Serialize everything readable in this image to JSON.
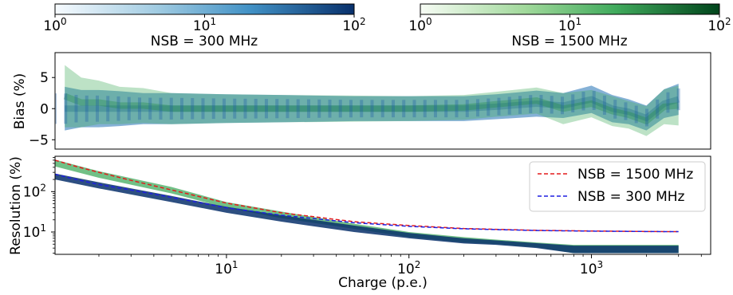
{
  "colorbars": [
    {
      "title": "NSB = 300 MHz",
      "colormap": "Blues",
      "color_low": "#f7fbff",
      "color_high": "#08306b",
      "ticks": [
        {
          "base": "10",
          "exp": "0"
        },
        {
          "base": "10",
          "exp": "1"
        },
        {
          "base": "10",
          "exp": "2"
        }
      ]
    },
    {
      "title": "NSB = 1500 MHz",
      "colormap": "Greens",
      "color_low": "#f7fcf5",
      "color_high": "#00441b",
      "ticks": [
        {
          "base": "10",
          "exp": "0"
        },
        {
          "base": "10",
          "exp": "1"
        },
        {
          "base": "10",
          "exp": "2"
        }
      ]
    }
  ],
  "chart_data": [
    {
      "type": "heatmap",
      "panel": "bias",
      "ylabel": "Bias (%)",
      "ylim": [
        -6.5,
        9
      ],
      "xscale": "log",
      "xlim": [
        1.15,
        4500
      ],
      "yticks": [
        "5",
        "0",
        "−5"
      ],
      "ytick_values": [
        5,
        0,
        -5
      ],
      "grid": false,
      "series": [
        {
          "name": "NSB = 300 MHz",
          "color": "#2171b5",
          "charge": [
            1.3,
            1.6,
            2.0,
            2.6,
            3.5,
            5,
            10,
            20,
            50,
            100,
            200,
            300,
            500,
            700,
            1000,
            1300,
            1600,
            2000,
            2500,
            3000
          ],
          "bias_center": [
            0,
            0,
            0,
            0,
            0,
            0,
            0,
            0,
            0,
            0,
            0,
            0.3,
            0.8,
            0.5,
            1.5,
            0,
            -0.5,
            -1.5,
            0.8,
            1.5
          ],
          "bias_halfwidth": [
            3.5,
            3,
            3,
            2.8,
            2.5,
            2.5,
            2.3,
            2.2,
            2,
            2,
            2,
            2,
            2.1,
            2,
            2.2,
            2.2,
            2,
            2,
            2.3,
            2.5
          ]
        },
        {
          "name": "NSB = 1500 MHz",
          "color": "#41ab5d",
          "charge": [
            1.3,
            1.6,
            2.0,
            2.6,
            3.5,
            5,
            10,
            20,
            50,
            100,
            200,
            300,
            500,
            700,
            1000,
            1300,
            1600,
            2000,
            2500,
            3000
          ],
          "bias_center": [
            2,
            1,
            1,
            0.5,
            0.5,
            0,
            0,
            0,
            0,
            0,
            0.2,
            0.7,
            1.3,
            0,
            0.8,
            -0.4,
            -1,
            -2,
            0.3,
            0.5
          ],
          "bias_halfwidth": [
            5,
            4,
            3.5,
            3,
            2.8,
            2.5,
            2.3,
            2.2,
            2.1,
            2,
            2,
            2,
            2.1,
            2.5,
            2.2,
            2.4,
            2.2,
            2.4,
            2.8,
            3.2
          ]
        }
      ]
    },
    {
      "type": "line",
      "panel": "resolution",
      "xlabel": "Charge (p.e.)",
      "ylabel": "Resolution (%)",
      "xscale": "log",
      "yscale": "log",
      "xlim": [
        1.15,
        4500
      ],
      "ylim": [
        2.8,
        750
      ],
      "xticks": [
        {
          "base": "10",
          "exp": "1",
          "value": 10
        },
        {
          "base": "10",
          "exp": "2",
          "value": 100
        },
        {
          "base": "10",
          "exp": "3",
          "value": 1000
        }
      ],
      "yticks": [
        {
          "base": "10",
          "exp": "1",
          "value": 10
        },
        {
          "base": "10",
          "exp": "2",
          "value": 100
        }
      ],
      "legend_position": "top-right",
      "grid": false,
      "series": [
        {
          "name": "NSB = 1500 MHz",
          "color": "#e41a1c",
          "style": "dashed",
          "x": [
            1.15,
            1.5,
            2,
            3,
            5,
            10,
            20,
            50,
            100,
            200,
            500,
            1000,
            2000,
            3000
          ],
          "y": [
            600,
            420,
            300,
            190,
            110,
            52,
            30,
            18,
            14.5,
            12.2,
            11,
            10.6,
            10.3,
            10.2
          ]
        },
        {
          "name": "NSB = 300 MHz",
          "color": "#1f1fe0",
          "style": "dashed",
          "x": [
            1.15,
            1.5,
            2,
            3,
            5,
            10,
            20,
            50,
            100,
            200,
            500,
            1000,
            2000,
            3000
          ],
          "y": [
            270,
            200,
            150,
            110,
            72,
            40,
            26,
            17,
            13.8,
            12,
            10.9,
            10.5,
            10.3,
            10.2
          ]
        }
      ],
      "bands": [
        {
          "name": "NSB = 1500 MHz",
          "color": "#41ab5d",
          "x": [
            1.15,
            2,
            5,
            10,
            20,
            50,
            100,
            200,
            300,
            500,
            800,
            1000,
            2000,
            3000
          ],
          "y_low": [
            420,
            220,
            90,
            40,
            22,
            12,
            7.5,
            5.5,
            5,
            4.2,
            3,
            3,
            3,
            3
          ],
          "y_high": [
            620,
            320,
            130,
            55,
            32,
            16,
            10,
            7.5,
            6.5,
            5.5,
            4.8,
            4.8,
            4.8,
            4.8
          ]
        },
        {
          "name": "NSB = 300 MHz",
          "color": "#08306b",
          "x": [
            1.15,
            2,
            5,
            10,
            20,
            50,
            100,
            200,
            300,
            500,
            800,
            1000,
            2000,
            3000
          ],
          "y_low": [
            200,
            120,
            55,
            30,
            18,
            10,
            7,
            5.2,
            4.8,
            4,
            3,
            3,
            3,
            3
          ],
          "y_high": [
            280,
            170,
            78,
            42,
            26,
            14.5,
            9.5,
            7,
            6.2,
            5.3,
            4.6,
            4.6,
            4.6,
            4.6
          ]
        }
      ]
    }
  ]
}
